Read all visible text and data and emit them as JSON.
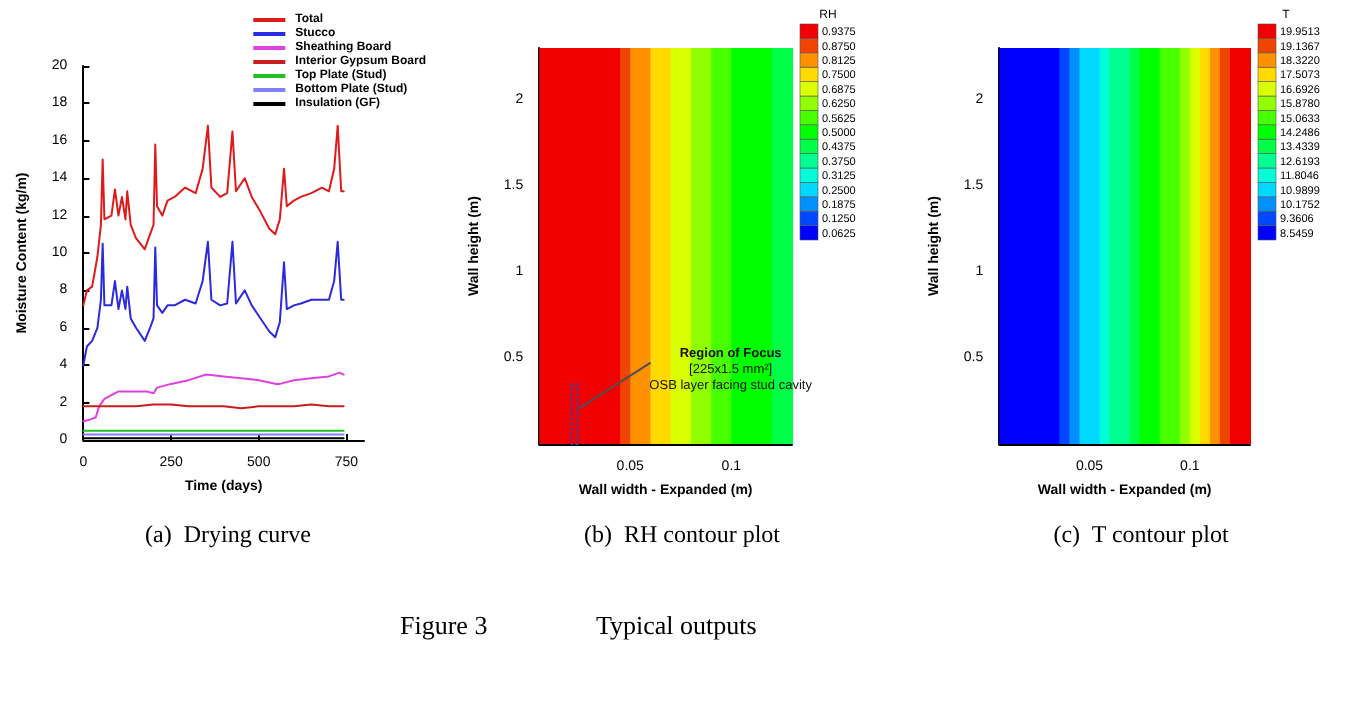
{
  "chart_data": [
    {
      "type": "line",
      "title": "(a)  Drying curve",
      "xlabel": "Time (days)",
      "ylabel": "Moisture Content (kg/m)",
      "xlim": [
        0,
        800
      ],
      "xticks": [
        0,
        250,
        500,
        750
      ],
      "ylim": [
        0,
        20
      ],
      "yticks": [
        0,
        2,
        4,
        6,
        8,
        10,
        12,
        14,
        16,
        18,
        20
      ],
      "grid": false,
      "legend": "top right",
      "marker": "none",
      "line_style": "solid",
      "series": [
        {
          "name": "Total",
          "color": "#e01a1a",
          "x": [
            0,
            10,
            25,
            40,
            50,
            55,
            60,
            80,
            90,
            100,
            110,
            120,
            125,
            135,
            150,
            175,
            190,
            200,
            205,
            210,
            225,
            240,
            260,
            290,
            320,
            340,
            355,
            365,
            390,
            410,
            425,
            435,
            460,
            480,
            505,
            530,
            547,
            560,
            572,
            580,
            600,
            620,
            650,
            680,
            700,
            715,
            725,
            735,
            742
          ],
          "values": [
            7.2,
            8,
            8.2,
            9.8,
            11.5,
            15,
            11.8,
            12,
            13.4,
            12,
            13,
            11.8,
            13.3,
            11.5,
            10.8,
            10.2,
            11,
            11.5,
            15.8,
            12.5,
            12,
            12.8,
            13,
            13.5,
            13.2,
            14.5,
            16.8,
            13.5,
            13,
            13.2,
            16.5,
            13.3,
            14,
            13,
            12.2,
            11.3,
            11,
            11.8,
            14.5,
            12.5,
            12.8,
            13,
            13.2,
            13.5,
            13.3,
            14.5,
            16.8,
            13.3,
            13.3
          ]
        },
        {
          "name": "Stucco",
          "color": "#2a2ae0",
          "x": [
            0,
            10,
            25,
            40,
            50,
            55,
            60,
            80,
            90,
            100,
            110,
            120,
            125,
            135,
            150,
            175,
            190,
            200,
            205,
            210,
            225,
            240,
            260,
            290,
            320,
            340,
            355,
            365,
            390,
            410,
            425,
            435,
            460,
            480,
            505,
            530,
            547,
            560,
            572,
            580,
            600,
            620,
            650,
            680,
            700,
            715,
            725,
            735,
            742
          ],
          "values": [
            4,
            5,
            5.3,
            6,
            7.5,
            10.5,
            7.2,
            7.2,
            8.5,
            7,
            8,
            7,
            8.2,
            6.5,
            6,
            5.3,
            6,
            6.5,
            10.3,
            7.2,
            6.8,
            7.2,
            7.2,
            7.5,
            7.3,
            8.5,
            10.6,
            7.5,
            7.2,
            7.3,
            10.6,
            7.3,
            8,
            7.2,
            6.5,
            5.8,
            5.5,
            6.3,
            9.5,
            7,
            7.2,
            7.3,
            7.5,
            7.5,
            7.5,
            8.5,
            10.6,
            7.5,
            7.5
          ]
        },
        {
          "name": "Sheathing Board",
          "color": "#e040e0",
          "x": [
            0,
            20,
            35,
            45,
            60,
            100,
            150,
            180,
            200,
            210,
            250,
            300,
            350,
            400,
            450,
            500,
            550,
            560,
            600,
            650,
            700,
            730,
            742
          ],
          "values": [
            1,
            1.1,
            1.2,
            1.8,
            2.2,
            2.6,
            2.6,
            2.6,
            2.5,
            2.8,
            3,
            3.2,
            3.5,
            3.4,
            3.3,
            3.2,
            3,
            3,
            3.2,
            3.3,
            3.4,
            3.6,
            3.5
          ]
        },
        {
          "name": "Interior Gypsum Board",
          "color": "#c81e1e",
          "x": [
            0,
            50,
            100,
            150,
            200,
            250,
            300,
            350,
            400,
            450,
            500,
            550,
            600,
            650,
            700,
            742
          ],
          "values": [
            1.8,
            1.8,
            1.8,
            1.8,
            1.9,
            1.9,
            1.8,
            1.8,
            1.8,
            1.7,
            1.8,
            1.8,
            1.8,
            1.9,
            1.8,
            1.8
          ]
        },
        {
          "name": "Top Plate (Stud)",
          "color": "#20c020",
          "x": [
            0,
            742
          ],
          "values": [
            0.5,
            0.5
          ]
        },
        {
          "name": "Bottom Plate (Stud)",
          "color": "#8080ff",
          "x": [
            0,
            742
          ],
          "values": [
            0.3,
            0.3
          ]
        },
        {
          "name": "Insulation (GF)",
          "color": "#000000",
          "x": [
            0,
            742
          ],
          "values": [
            0.1,
            0.1
          ]
        }
      ]
    },
    {
      "type": "heatmap",
      "title": "(b)  RH contour plot",
      "xlabel": "Wall width - Expanded (m)",
      "ylabel": "Wall height (m)",
      "clabel": "RH",
      "xlim": [
        0.005,
        0.13
      ],
      "xticks": [
        0.05,
        0.1
      ],
      "ylim": [
        0,
        2.3
      ],
      "yticks": [
        0.5,
        1,
        1.5,
        2
      ],
      "x": [
        0.0075,
        0.0125,
        0.0175,
        0.0225,
        0.0275,
        0.0325,
        0.0375,
        0.0425,
        0.0475,
        0.0525,
        0.0575,
        0.0625,
        0.0675,
        0.0725,
        0.0775,
        0.0825,
        0.0875,
        0.0925,
        0.0975,
        0.1025,
        0.1075,
        0.1125,
        0.1175,
        0.1225,
        0.1275
      ],
      "cells": [
        [
          0.9375,
          0.9375,
          0.9375,
          0.9375,
          0.9375,
          0.9375,
          0.9375,
          0.9375,
          0.875,
          0.8125,
          0.8125,
          0.75,
          0.75,
          0.6875,
          0.6875,
          0.625,
          0.625,
          0.5625,
          0.5625,
          0.5,
          0.5,
          0.5,
          0.5,
          0.4375,
          0.4375
        ]
      ],
      "cticks": [
        0.0625,
        {
          "value": 0.125,
          "label": "0.1250"
        },
        0.1875,
        {
          "value": 0.25,
          "label": "0.2500"
        },
        0.3125,
        {
          "value": 0.375,
          "label": "0.3750"
        },
        0.4375,
        {
          "value": 0.5,
          "label": "0.5000"
        },
        0.5625,
        {
          "value": 0.625,
          "label": "0.6250"
        },
        0.6875,
        {
          "value": 0.75,
          "label": "0.7500"
        },
        0.8125,
        {
          "value": 0.875,
          "label": "0.8750"
        },
        0.9375
      ],
      "annotations": [
        "Region of Focus",
        "[225x1.5 mm²]",
        "OSB layer facing stud cavity"
      ]
    },
    {
      "type": "heatmap",
      "title": "(c)  T contour plot",
      "xlabel": "Wall width - Expanded (m)",
      "ylabel": "Wall height (m)",
      "clabel": "T",
      "xlim": [
        0.005,
        0.13
      ],
      "xticks": [
        0.05,
        0.1
      ],
      "ylim": [
        0,
        2.3
      ],
      "yticks": [
        0.5,
        1,
        1.5,
        2
      ],
      "x": [
        0.0075,
        0.0125,
        0.0175,
        0.0225,
        0.0275,
        0.0325,
        0.0375,
        0.0425,
        0.0475,
        0.0525,
        0.0575,
        0.0625,
        0.0675,
        0.0725,
        0.0775,
        0.0825,
        0.0875,
        0.0925,
        0.0975,
        0.1025,
        0.1075,
        0.1125,
        0.1175,
        0.1225,
        0.1275
      ],
      "cells": [
        [
          8.5459,
          8.5459,
          8.5459,
          8.5459,
          8.5459,
          8.5459,
          9.3606,
          10.1752,
          10.9899,
          10.9899,
          11.8046,
          12.6193,
          12.6193,
          13.4339,
          14.2486,
          14.2486,
          15.0633,
          15.0633,
          15.878,
          16.6926,
          17.5073,
          18.322,
          19.1367,
          19.9513,
          19.9513
        ]
      ],
      "cticks": [
        8.5459,
        9.3606,
        10.1752,
        10.9899,
        11.8046,
        12.6193,
        13.4339,
        14.2486,
        15.0633,
        {
          "value": 15.878,
          "label": "15.8780"
        },
        16.6926,
        17.5073,
        {
          "value": 18.322,
          "label": "18.3220"
        },
        19.1367,
        19.9513
      ]
    },
    {
      "type": "other",
      "title": "Figure 3",
      "subtitle": "Typical outputs"
    }
  ]
}
